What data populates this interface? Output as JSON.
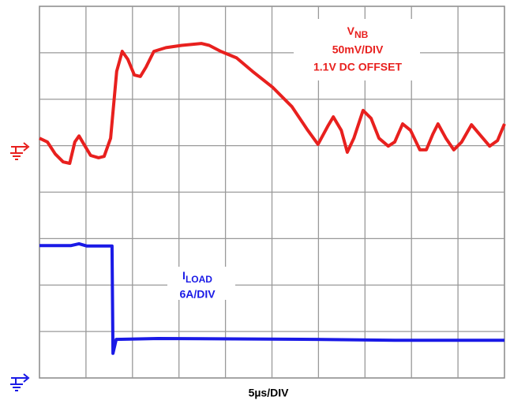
{
  "chart_data": {
    "type": "line",
    "xlim": [
      0,
      10
    ],
    "ylim": [
      0,
      8
    ],
    "grid": true,
    "x_label": "5µs/DIV",
    "series": [
      {
        "name": {
          "text": "V",
          "sub": "NB"
        },
        "color": "#e8201e",
        "notes": [
          "50mV/DIV",
          "1.1V DC OFFSET"
        ],
        "x": [
          0,
          0.17,
          0.34,
          0.51,
          0.65,
          0.76,
          0.85,
          0.98,
          1.1,
          1.27,
          1.39,
          1.53,
          1.66,
          1.78,
          1.9,
          2.04,
          2.17,
          2.29,
          2.46,
          2.72,
          3.06,
          3.48,
          3.65,
          3.9,
          4.24,
          4.58,
          5.01,
          5.43,
          5.77,
          5.99,
          6.2,
          6.32,
          6.49,
          6.62,
          6.76,
          6.96,
          7.13,
          7.3,
          7.5,
          7.64,
          7.81,
          7.98,
          8.18,
          8.32,
          8.46,
          8.57,
          8.74,
          8.91,
          9.08,
          9.29,
          9.46,
          9.68,
          9.85,
          10
        ],
        "values": [
          5.16,
          5.08,
          4.82,
          4.65,
          4.62,
          5.08,
          5.21,
          4.99,
          4.79,
          4.74,
          4.77,
          5.16,
          6.6,
          7.03,
          6.86,
          6.52,
          6.49,
          6.69,
          7.03,
          7.11,
          7.16,
          7.2,
          7.16,
          7.03,
          6.89,
          6.6,
          6.26,
          5.84,
          5.33,
          5.03,
          5.42,
          5.62,
          5.33,
          4.86,
          5.16,
          5.76,
          5.59,
          5.16,
          4.99,
          5.08,
          5.47,
          5.33,
          4.91,
          4.91,
          5.25,
          5.47,
          5.16,
          4.91,
          5.08,
          5.45,
          5.25,
          4.99,
          5.11,
          5.47
        ]
      },
      {
        "name": {
          "text": "I",
          "sub": "LOAD"
        },
        "color": "#1a1ae6",
        "notes": [
          "6A/DIV"
        ],
        "x": [
          0,
          0.68,
          0.85,
          1.02,
          1.56,
          1.58,
          1.65,
          2.55,
          5.94,
          7.64,
          10
        ],
        "values": [
          2.85,
          2.85,
          2.89,
          2.84,
          2.84,
          0.53,
          0.83,
          0.85,
          0.83,
          0.81,
          0.81
        ]
      }
    ]
  }
}
